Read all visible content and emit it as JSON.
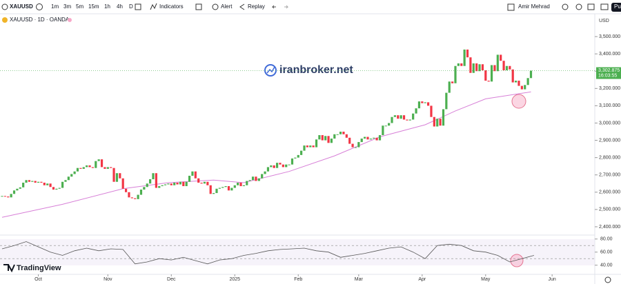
{
  "toolbar": {
    "symbol": "XAUUSD",
    "intervals": [
      "1m",
      "3m",
      "5m",
      "15m",
      "1h",
      "4h",
      "D"
    ],
    "indicators": "Indicators",
    "alert": "Alert",
    "replay": "Replay",
    "user": "Amir Mehrad",
    "publish": "Pu"
  },
  "legend": "XAUUSD · 1D · OANDA",
  "watermark": "iranbroker.net",
  "logo": "TradingView",
  "currency": "USD",
  "last_price": {
    "value": 3302.875,
    "label": "3,302.875",
    "countdown": "16:03:55"
  },
  "chart_data": {
    "type": "candlestick",
    "up_color": "#4caf50",
    "down_color": "#f23645",
    "ylim": [
      2356,
      3600
    ],
    "yticks": [
      {
        "value": 2400,
        "label": "2,400.000"
      },
      {
        "value": 2500,
        "label": "2,500.000"
      },
      {
        "value": 2600,
        "label": "2,600.000"
      },
      {
        "value": 2700,
        "label": "2,700.000"
      },
      {
        "value": 2800,
        "label": "2,800.000"
      },
      {
        "value": 2900,
        "label": "2,900.000"
      },
      {
        "value": 3000,
        "label": "3,000.000"
      },
      {
        "value": 3100,
        "label": "3,100.000"
      },
      {
        "value": 3200,
        "label": "3,200.000"
      },
      {
        "value": 3300,
        "label": "3,300.000"
      },
      {
        "value": 3400,
        "label": "3,400.000"
      },
      {
        "value": 3500,
        "label": "3,500.000"
      }
    ],
    "xticks": [
      {
        "value": 12,
        "label": "Oct"
      },
      {
        "value": 35,
        "label": "Nov"
      },
      {
        "value": 56,
        "label": "Dec"
      },
      {
        "value": 77,
        "label": "2025"
      },
      {
        "value": 98,
        "label": "Feb"
      },
      {
        "value": 118,
        "label": "Mar"
      },
      {
        "value": 139,
        "label": "Apr"
      },
      {
        "value": 160,
        "label": "May"
      },
      {
        "value": 182,
        "label": "Jun"
      }
    ],
    "series": [
      {
        "values": [
          2578,
          2575,
          2570,
          2590,
          2610,
          2620,
          2628,
          2655,
          2670,
          2660,
          2665,
          2655,
          2660,
          2655,
          2640,
          2650,
          2630,
          2615,
          2620,
          2625,
          2660,
          2670,
          2690,
          2705,
          2720,
          2740,
          2735,
          2745,
          2755,
          2745,
          2740,
          2780,
          2790,
          2745,
          2735,
          2745,
          2740,
          2660,
          2710,
          2680,
          2620,
          2600,
          2570,
          2565,
          2560,
          2585,
          2615,
          2630,
          2650,
          2675,
          2710,
          2625,
          2635,
          2640,
          2645,
          2650,
          2640,
          2655,
          2645,
          2660,
          2635,
          2660,
          2695,
          2720,
          2680,
          2655,
          2650,
          2660,
          2640,
          2590,
          2595,
          2620,
          2625,
          2630,
          2635,
          2610,
          2625,
          2640,
          2655,
          2635,
          2640,
          2665,
          2670,
          2690,
          2665,
          2680,
          2705,
          2720,
          2745,
          2755,
          2740,
          2770,
          2760,
          2745,
          2760,
          2760,
          2795,
          2800,
          2815,
          2840,
          2870,
          2860,
          2870,
          2860,
          2905,
          2930,
          2900,
          2925,
          2885,
          2910,
          2935,
          2935,
          2950,
          2935,
          2915,
          2880,
          2860,
          2860,
          2890,
          2910,
          2920,
          2905,
          2910,
          2915,
          2900,
          2930,
          2985,
          2985,
          3000,
          3035,
          3045,
          3025,
          3045,
          3020,
          3015,
          3020,
          3055,
          3085,
          3125,
          3115,
          3120,
          3100,
          3035,
          2980,
          3025,
          2985,
          3080,
          3175,
          3240,
          3230,
          3330,
          3345,
          3330,
          3425,
          3380,
          3290,
          3345,
          3300,
          3340,
          3305,
          3245,
          3240,
          3335,
          3300,
          3395,
          3360,
          3305,
          3330,
          3310,
          3235,
          3245,
          3215,
          3195,
          3220,
          3260,
          3302.875
        ]
      },
      {
        "color": "#d77fd7",
        "x": [
          0,
          20,
          40,
          55,
          70,
          80,
          95,
          110,
          125,
          140,
          150,
          160,
          175
        ],
        "values": [
          2455,
          2530,
          2620,
          2655,
          2670,
          2655,
          2720,
          2810,
          2920,
          2990,
          3070,
          3140,
          3180
        ]
      }
    ],
    "rsi": {
      "color": "#555",
      "ylim": [
        26,
        85
      ],
      "yticks": [
        {
          "value": 80,
          "label": "80.00"
        },
        {
          "value": 60,
          "label": "60.00"
        },
        {
          "value": 40,
          "label": "40.00"
        }
      ],
      "levels": [
        70,
        50
      ],
      "x": [
        0,
        4,
        8,
        12,
        16,
        20,
        24,
        28,
        32,
        36,
        40,
        44,
        48,
        52,
        56,
        60,
        64,
        68,
        72,
        76,
        80,
        84,
        88,
        92,
        96,
        100,
        104,
        108,
        112,
        116,
        120,
        124,
        128,
        132,
        136,
        140,
        144,
        148,
        152,
        156,
        160,
        164,
        168,
        172,
        176
      ],
      "values": [
        65,
        70,
        76,
        68,
        60,
        55,
        62,
        66,
        62,
        65,
        64,
        42,
        45,
        50,
        48,
        52,
        47,
        42,
        48,
        50,
        55,
        58,
        62,
        64,
        65,
        66,
        62,
        60,
        52,
        55,
        58,
        62,
        66,
        68,
        60,
        50,
        70,
        72,
        70,
        62,
        60,
        55,
        45,
        50,
        55
      ]
    }
  }
}
